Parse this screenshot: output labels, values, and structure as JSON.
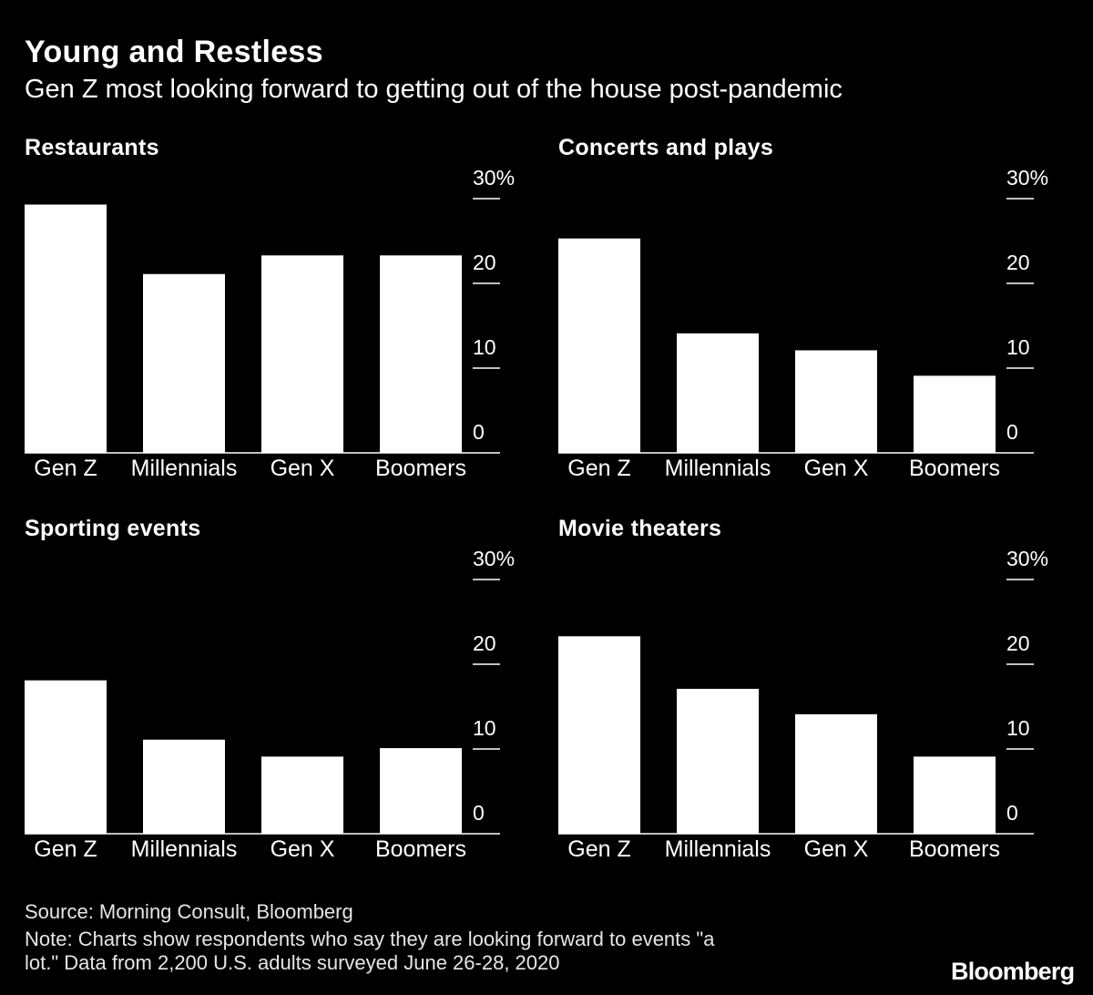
{
  "header": {
    "title": "Young and Restless",
    "subtitle": "Gen Z most looking forward to getting out of the house post-pandemic"
  },
  "chart_data": [
    {
      "type": "bar",
      "title": "Restaurants",
      "categories": [
        "Gen Z",
        "Millennials",
        "Gen X",
        "Boomers"
      ],
      "values": [
        29.3,
        21.1,
        23.3,
        23.3
      ],
      "ylim": [
        0,
        30
      ],
      "yticks": [
        "0",
        "10",
        "20",
        "30%"
      ],
      "y_axis_side": "right",
      "grid": false
    },
    {
      "type": "bar",
      "title": "Concerts and plays",
      "categories": [
        "Gen Z",
        "Millennials",
        "Gen X",
        "Boomers"
      ],
      "values": [
        25.3,
        14.1,
        12.1,
        9.1
      ],
      "ylim": [
        0,
        30
      ],
      "yticks": [
        "0",
        "10",
        "20",
        "30%"
      ],
      "y_axis_side": "right",
      "grid": false
    },
    {
      "type": "bar",
      "title": "Sporting events",
      "categories": [
        "Gen Z",
        "Millennials",
        "Gen X",
        "Boomers"
      ],
      "values": [
        18.1,
        11.1,
        9.1,
        10.1
      ],
      "ylim": [
        0,
        30
      ],
      "yticks": [
        "0",
        "10",
        "20",
        "30%"
      ],
      "y_axis_side": "right",
      "grid": false
    },
    {
      "type": "bar",
      "title": "Movie theaters",
      "categories": [
        "Gen Z",
        "Millennials",
        "Gen X",
        "Boomers"
      ],
      "values": [
        23.3,
        17.1,
        14.1,
        9.1
      ],
      "ylim": [
        0,
        30
      ],
      "yticks": [
        "0",
        "10",
        "20",
        "30%"
      ],
      "y_axis_side": "right",
      "grid": false
    }
  ],
  "footer": {
    "source": "Source: Morning Consult, Bloomberg",
    "note_line1": "Note: Charts show respondents who say they are looking forward to events \"a",
    "note_line2": "lot.\" Data from 2,200 U.S. adults surveyed June 26-28, 2020",
    "brand": "Bloomberg"
  },
  "colors": {
    "background": "#000000",
    "bars": "#ffffff",
    "text": "#ffffff"
  }
}
